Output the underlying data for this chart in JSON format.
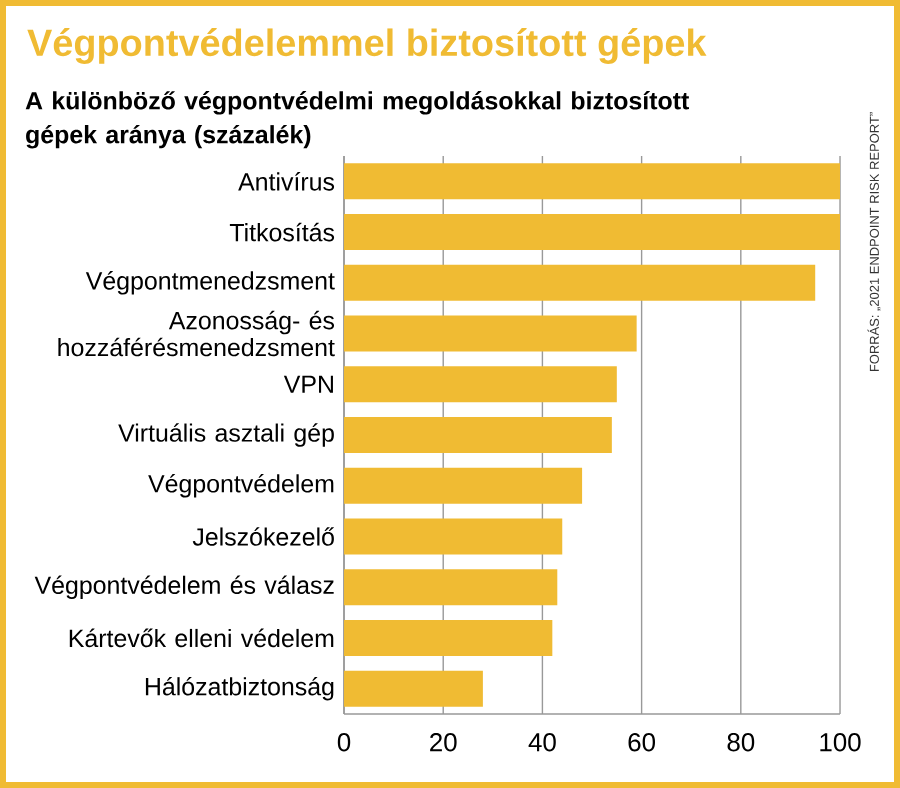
{
  "chart_data": {
    "type": "bar",
    "orientation": "horizontal",
    "title": "Végpontvédelemmel biztosított gépek",
    "subtitle": "A különböző végpontvédelmi megoldásokkal biztosított gépek aránya (százalék)",
    "categories": [
      "Antivírus",
      "Titkosítás",
      "Végpontmenedzsment",
      "Azonosság- és hozzáférésmenedzsment",
      "VPN",
      "Virtuális asztali gép",
      "Végpontvédelem",
      "Jelszókezelő",
      "Végpontvédelem és válasz",
      "Kártevők elleni védelem",
      "Hálózatbiztonság"
    ],
    "values": [
      100,
      100,
      95,
      59,
      55,
      54,
      48,
      44,
      43,
      42,
      28
    ],
    "color": "#f0bb33",
    "xlim": [
      0,
      100
    ],
    "xticks": [
      0,
      20,
      40,
      60,
      80,
      100
    ],
    "grid": "x",
    "annotations": [
      "FORRÁS: „2021 ENDPOINT RISK REPORT”"
    ]
  }
}
